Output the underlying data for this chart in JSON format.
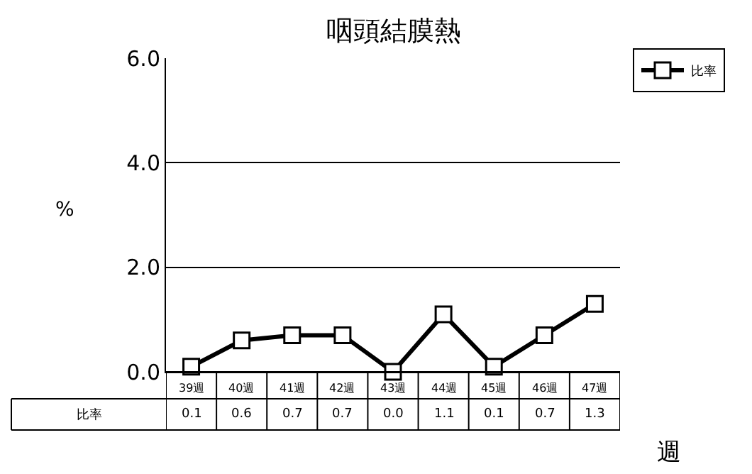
{
  "chart_data": {
    "type": "line",
    "title": "咽頭結膜熱",
    "xlabel": "週",
    "ylabel": "%",
    "categories": [
      "39週",
      "40週",
      "41週",
      "42週",
      "43週",
      "44週",
      "45週",
      "46週",
      "47週"
    ],
    "series": [
      {
        "name": "比率",
        "color": "#000000",
        "values": [
          0.1,
          0.6,
          0.7,
          0.7,
          0.0,
          1.1,
          0.1,
          0.7,
          1.3
        ],
        "value_labels": [
          "0.1",
          "0.6",
          "0.7",
          "0.7",
          "0.0",
          "1.1",
          "0.1",
          "0.7",
          "1.3"
        ]
      }
    ],
    "ylim": [
      0,
      6
    ],
    "yticks": [
      {
        "value": 0,
        "label": "0.0"
      },
      {
        "value": 2,
        "label": "2.0"
      },
      {
        "value": 4,
        "label": "4.0"
      },
      {
        "value": 6,
        "label": "6.0"
      }
    ],
    "grid": "y",
    "legend": "top right",
    "marker": "square",
    "line_style": "solid"
  }
}
